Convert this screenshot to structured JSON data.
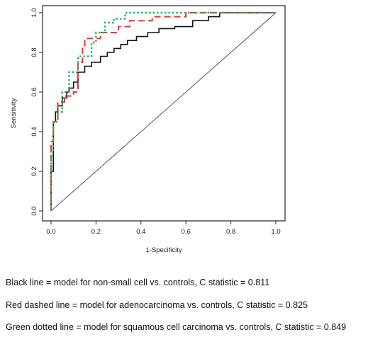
{
  "chart_data": {
    "type": "line",
    "title": "",
    "xlabel": "1-Specificity",
    "ylabel": "Sensitivity",
    "xlim": [
      0,
      1
    ],
    "ylim": [
      0,
      1
    ],
    "xticks": [
      "0.0",
      "0.2",
      "0.4",
      "0.6",
      "0.8",
      "1.0"
    ],
    "yticks": [
      "0.0",
      "0.2",
      "0.4",
      "0.6",
      "0.8",
      "1.0"
    ],
    "grid": false,
    "legend": "none",
    "reference_line": {
      "x": [
        0,
        1
      ],
      "y": [
        0,
        1
      ],
      "color": "#555555"
    },
    "series": [
      {
        "key": "non-small-cell",
        "color": "#111111",
        "style": "solid",
        "x": [
          0,
          0,
          0.01,
          0.01,
          0.02,
          0.02,
          0.03,
          0.03,
          0.05,
          0.05,
          0.07,
          0.07,
          0.08,
          0.08,
          0.1,
          0.1,
          0.12,
          0.12,
          0.15,
          0.15,
          0.18,
          0.18,
          0.22,
          0.22,
          0.25,
          0.25,
          0.28,
          0.28,
          0.31,
          0.31,
          0.34,
          0.34,
          0.38,
          0.38,
          0.43,
          0.43,
          0.48,
          0.48,
          0.55,
          0.55,
          0.63,
          0.63,
          0.7,
          0.7,
          0.75,
          0.75,
          1.0
        ],
        "y": [
          0,
          0.2,
          0.2,
          0.45,
          0.45,
          0.5,
          0.5,
          0.53,
          0.53,
          0.57,
          0.57,
          0.6,
          0.6,
          0.62,
          0.62,
          0.65,
          0.65,
          0.7,
          0.7,
          0.73,
          0.73,
          0.75,
          0.75,
          0.78,
          0.78,
          0.8,
          0.8,
          0.82,
          0.82,
          0.84,
          0.84,
          0.86,
          0.86,
          0.88,
          0.88,
          0.9,
          0.9,
          0.92,
          0.92,
          0.93,
          0.93,
          0.96,
          0.96,
          0.98,
          0.98,
          1.0,
          1.0
        ]
      },
      {
        "key": "adenocarcinoma",
        "color": "#ff2a2a",
        "style": "dashed",
        "x": [
          0,
          0,
          0.01,
          0.01,
          0.03,
          0.03,
          0.06,
          0.06,
          0.1,
          0.1,
          0.12,
          0.12,
          0.14,
          0.14,
          0.15,
          0.15,
          0.22,
          0.22,
          0.3,
          0.3,
          0.35,
          0.35,
          0.45,
          0.45,
          0.6,
          0.6,
          1.0
        ],
        "y": [
          0,
          0.35,
          0.35,
          0.45,
          0.45,
          0.55,
          0.55,
          0.58,
          0.58,
          0.6,
          0.6,
          0.75,
          0.75,
          0.82,
          0.82,
          0.87,
          0.87,
          0.9,
          0.9,
          0.93,
          0.93,
          0.96,
          0.96,
          0.98,
          0.98,
          1.0,
          1.0
        ]
      },
      {
        "key": "squamous-cell",
        "color": "#1ab56a",
        "style": "dotted",
        "x": [
          0,
          0,
          0.01,
          0.01,
          0.03,
          0.03,
          0.05,
          0.05,
          0.08,
          0.08,
          0.12,
          0.12,
          0.18,
          0.18,
          0.2,
          0.2,
          0.24,
          0.24,
          0.28,
          0.28,
          0.33,
          0.33,
          1.0
        ],
        "y": [
          0,
          0.3,
          0.3,
          0.45,
          0.45,
          0.5,
          0.5,
          0.6,
          0.6,
          0.7,
          0.7,
          0.78,
          0.78,
          0.85,
          0.85,
          0.9,
          0.9,
          0.95,
          0.95,
          0.97,
          0.97,
          1.0,
          1.0
        ]
      }
    ]
  },
  "captions": [
    "Black line = model for non-small cell vs. controls, C statistic = 0.811",
    "Red dashed line = model for adenocarcinoma vs. controls, C statistic = 0.825",
    "Green dotted line = model for squamous cell carcinoma vs. controls, C statistic = 0.849"
  ]
}
